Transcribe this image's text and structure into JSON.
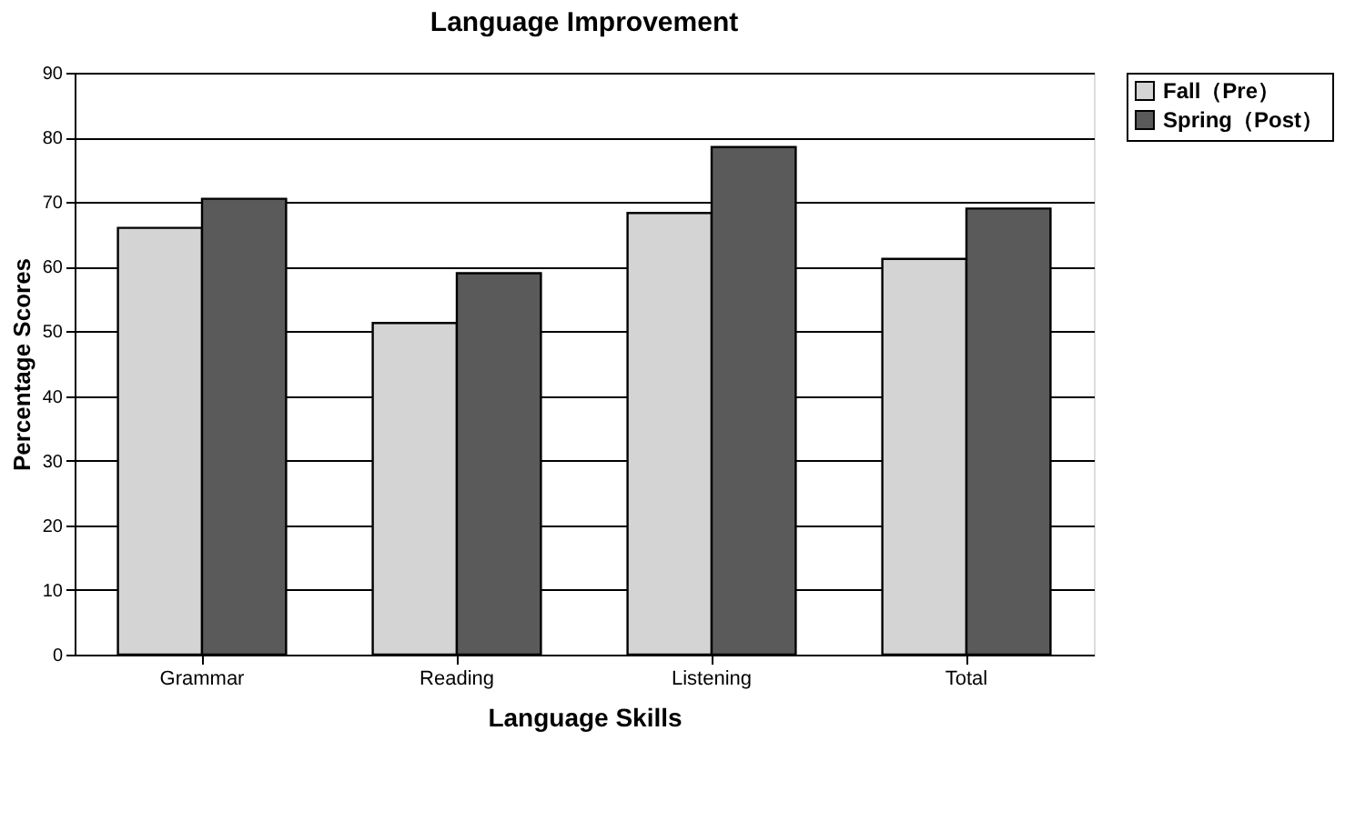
{
  "chart_data": {
    "type": "bar",
    "title": "Language Improvement",
    "xlabel": "Language Skills",
    "ylabel": "Percentage Scores",
    "categories": [
      "Grammar",
      "Reading",
      "Listening",
      "Total"
    ],
    "series": [
      {
        "name": "Fall（Pre）",
        "color": "#d4d4d4",
        "values": [
          66,
          51.3,
          68.3,
          61.2
        ]
      },
      {
        "name": "Spring（Post）",
        "color": "#5a5a5a",
        "values": [
          70.5,
          59,
          78.5,
          69
        ]
      }
    ],
    "ylim": [
      0,
      90
    ],
    "yticks": [
      0,
      10,
      20,
      30,
      40,
      50,
      60,
      70,
      80,
      90
    ],
    "grid": "y",
    "legend": "right"
  }
}
